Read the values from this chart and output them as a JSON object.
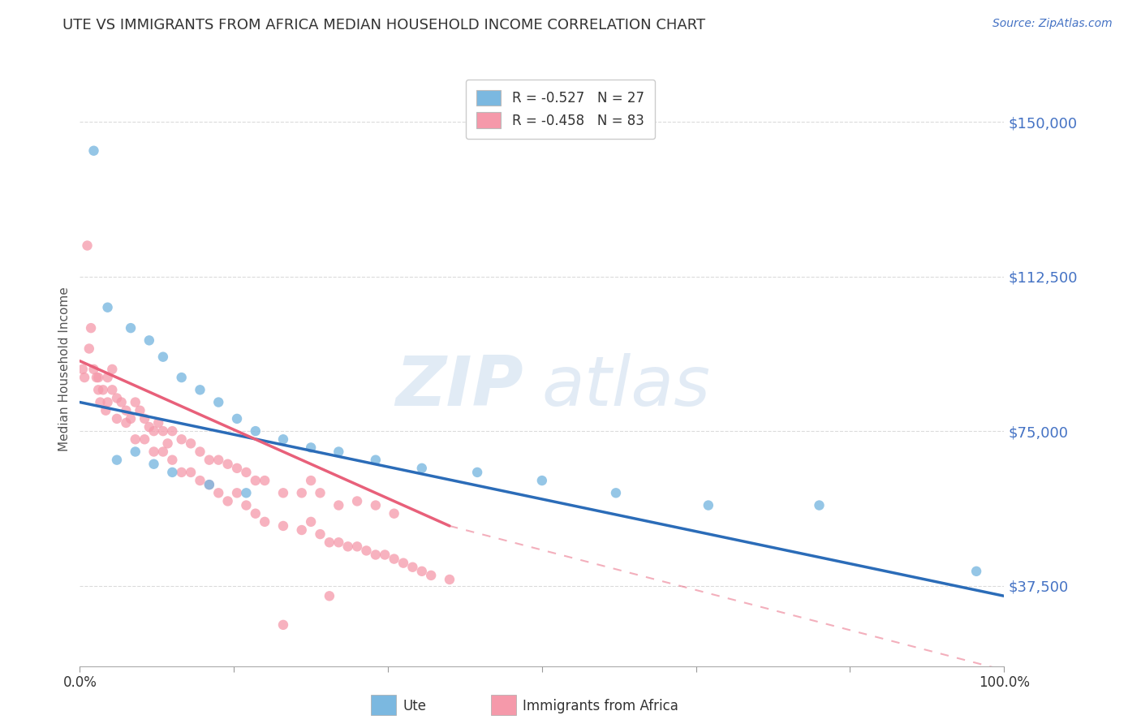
{
  "title": "UTE VS IMMIGRANTS FROM AFRICA MEDIAN HOUSEHOLD INCOME CORRELATION CHART",
  "source_text": "Source: ZipAtlas.com",
  "ylabel": "Median Household Income",
  "watermark_zip": "ZIP",
  "watermark_atlas": "atlas",
  "xlim": [
    0.0,
    100.0
  ],
  "ylim": [
    18000,
    162000
  ],
  "yticks": [
    37500,
    75000,
    112500,
    150000
  ],
  "ytick_labels": [
    "$37,500",
    "$75,000",
    "$112,500",
    "$150,000"
  ],
  "xtick_labels": [
    "0.0%",
    "",
    "",
    "",
    "",
    "",
    "100.0%"
  ],
  "legend_line1": "R = -0.527   N = 27",
  "legend_line2": "R = -0.458   N = 83",
  "ute_color": "#7bb8e0",
  "africa_color": "#f599aa",
  "regression_ute_color": "#2b6cb8",
  "regression_africa_color": "#e8607a",
  "title_color": "#333333",
  "axis_label_color": "#555555",
  "ytick_color": "#4472c4",
  "grid_color": "#cccccc",
  "background_color": "#ffffff",
  "ute_x": [
    1.5,
    3.0,
    5.5,
    7.5,
    9.0,
    11.0,
    13.0,
    15.0,
    17.0,
    19.0,
    22.0,
    25.0,
    28.0,
    32.0,
    37.0,
    43.0,
    50.0,
    58.0,
    68.0,
    4.0,
    6.0,
    8.0,
    10.0,
    14.0,
    18.0,
    80.0,
    97.0
  ],
  "ute_y": [
    143000,
    105000,
    100000,
    97000,
    93000,
    88000,
    85000,
    82000,
    78000,
    75000,
    73000,
    71000,
    70000,
    68000,
    66000,
    65000,
    63000,
    60000,
    57000,
    68000,
    70000,
    67000,
    65000,
    62000,
    60000,
    57000,
    41000
  ],
  "africa_x": [
    0.3,
    0.5,
    0.8,
    1.0,
    1.2,
    1.5,
    1.8,
    2.0,
    2.2,
    2.5,
    2.8,
    3.0,
    3.5,
    4.0,
    4.5,
    5.0,
    5.5,
    6.0,
    6.5,
    7.0,
    7.5,
    8.0,
    8.5,
    9.0,
    9.5,
    10.0,
    11.0,
    12.0,
    13.0,
    14.0,
    15.0,
    16.0,
    17.0,
    18.0,
    19.0,
    20.0,
    22.0,
    24.0,
    25.0,
    26.0,
    28.0,
    30.0,
    32.0,
    34.0,
    3.0,
    4.0,
    5.0,
    6.0,
    7.0,
    8.0,
    9.0,
    10.0,
    11.0,
    12.0,
    13.0,
    14.0,
    15.0,
    16.0,
    17.0,
    18.0,
    19.0,
    20.0,
    22.0,
    24.0,
    25.0,
    26.0,
    27.0,
    28.0,
    29.0,
    30.0,
    31.0,
    32.0,
    33.0,
    34.0,
    35.0,
    36.0,
    37.0,
    38.0,
    40.0,
    2.0,
    3.5,
    22.0,
    27.0
  ],
  "africa_y": [
    90000,
    88000,
    120000,
    95000,
    100000,
    90000,
    88000,
    88000,
    82000,
    85000,
    80000,
    88000,
    85000,
    83000,
    82000,
    80000,
    78000,
    82000,
    80000,
    78000,
    76000,
    75000,
    77000,
    75000,
    72000,
    75000,
    73000,
    72000,
    70000,
    68000,
    68000,
    67000,
    66000,
    65000,
    63000,
    63000,
    60000,
    60000,
    63000,
    60000,
    57000,
    58000,
    57000,
    55000,
    82000,
    78000,
    77000,
    73000,
    73000,
    70000,
    70000,
    68000,
    65000,
    65000,
    63000,
    62000,
    60000,
    58000,
    60000,
    57000,
    55000,
    53000,
    52000,
    51000,
    53000,
    50000,
    48000,
    48000,
    47000,
    47000,
    46000,
    45000,
    45000,
    44000,
    43000,
    42000,
    41000,
    40000,
    39000,
    85000,
    90000,
    28000,
    35000
  ],
  "reg_ute_x0": 0,
  "reg_ute_y0": 82000,
  "reg_ute_x1": 100,
  "reg_ute_y1": 35000,
  "reg_africa_x0": 0,
  "reg_africa_y0": 92000,
  "reg_africa_x1": 40,
  "reg_africa_y1": 52000,
  "reg_africa_dash_x0": 40,
  "reg_africa_dash_y0": 52000,
  "reg_africa_dash_x1": 100,
  "reg_africa_dash_y1": 17000,
  "figsize": [
    14.06,
    8.92
  ],
  "dpi": 100
}
